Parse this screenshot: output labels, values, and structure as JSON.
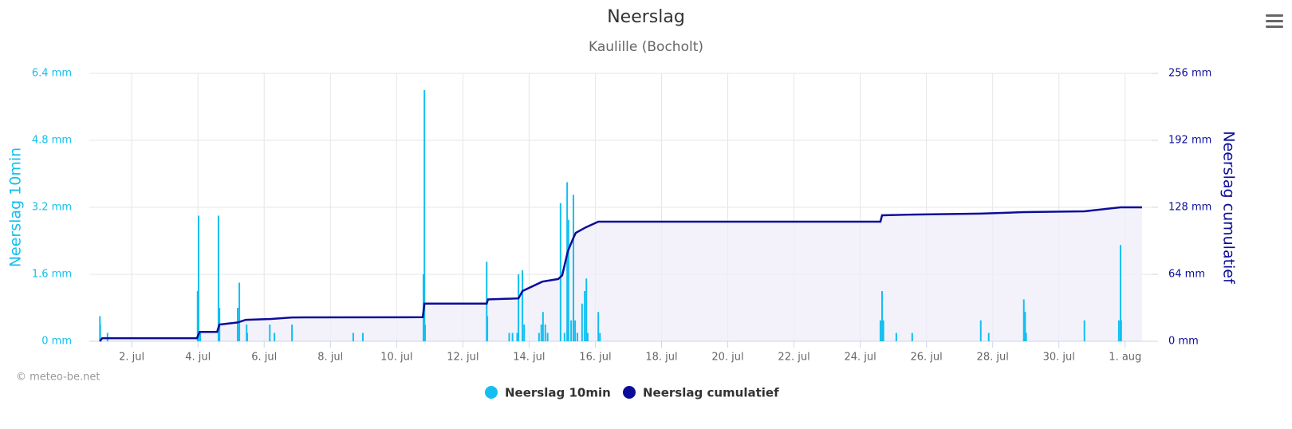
{
  "chart_data": {
    "type": "combo",
    "title": "Neerslag",
    "subtitle": "Kaulille (Bocholt)",
    "credit": "© meteo-be.net",
    "ylabel": "Neerslag 10min",
    "y2label": "Neerslag cumulatief",
    "xlim": [
      0.72,
      32.8
    ],
    "xticks": [
      {
        "value": 2,
        "label": "2. jul"
      },
      {
        "value": 4,
        "label": "4. jul"
      },
      {
        "value": 6,
        "label": "6. jul"
      },
      {
        "value": 8,
        "label": "8. jul"
      },
      {
        "value": 10,
        "label": "10. jul"
      },
      {
        "value": 12,
        "label": "12. jul"
      },
      {
        "value": 14,
        "label": "14. jul"
      },
      {
        "value": 16,
        "label": "16. jul"
      },
      {
        "value": 18,
        "label": "18. jul"
      },
      {
        "value": 20,
        "label": "20. jul"
      },
      {
        "value": 22,
        "label": "22. jul"
      },
      {
        "value": 24,
        "label": "24. jul"
      },
      {
        "value": 26,
        "label": "26. jul"
      },
      {
        "value": 28,
        "label": "28. jul"
      },
      {
        "value": 30,
        "label": "30. jul"
      },
      {
        "value": 32,
        "label": "1. aug"
      }
    ],
    "ylim": [
      0,
      6.4
    ],
    "yticks": [
      {
        "value": 0,
        "label": "0 mm"
      },
      {
        "value": 1.6,
        "label": "1.6 mm"
      },
      {
        "value": 3.2,
        "label": "3.2 mm"
      },
      {
        "value": 4.8,
        "label": "4.8 mm"
      },
      {
        "value": 6.4,
        "label": "6.4 mm"
      }
    ],
    "y2lim": [
      0,
      256
    ],
    "y2ticks": [
      {
        "value": 0,
        "label": "0 mm"
      },
      {
        "value": 64,
        "label": "64 mm"
      },
      {
        "value": 128,
        "label": "128 mm"
      },
      {
        "value": 192,
        "label": "192 mm"
      },
      {
        "value": 256,
        "label": "256 mm"
      }
    ],
    "grid": true,
    "series": [
      {
        "name": "Neerslag 10min",
        "type": "bar",
        "color": "#12bff0",
        "x": [
          1.04,
          1.05,
          1.27,
          3.99,
          4.02,
          4.07,
          4.62,
          4.65,
          5.2,
          5.25,
          5.47,
          5.49,
          6.17,
          6.31,
          6.84,
          8.69,
          8.98,
          10.81,
          10.84,
          10.86,
          12.72,
          12.74,
          13.4,
          13.5,
          13.64,
          13.68,
          13.8,
          13.85,
          14.3,
          14.37,
          14.42,
          14.49,
          14.56,
          14.95,
          15.07,
          15.15,
          15.19,
          15.27,
          15.34,
          15.39,
          15.46,
          15.6,
          15.68,
          15.73,
          15.77,
          16.09,
          16.14,
          24.61,
          24.66,
          24.7,
          25.09,
          25.57,
          27.64,
          27.88,
          28.94,
          28.98,
          29.01,
          30.77,
          31.81,
          31.86,
          31.88
        ],
        "values": [
          0.6,
          0.4,
          0.2,
          1.2,
          3.0,
          0.2,
          3.0,
          0.8,
          0.8,
          1.4,
          0.4,
          0.2,
          0.4,
          0.2,
          0.4,
          0.2,
          0.2,
          1.6,
          6.0,
          0.4,
          1.9,
          0.6,
          0.2,
          0.2,
          0.2,
          1.6,
          1.7,
          0.4,
          0.2,
          0.4,
          0.7,
          0.4,
          0.2,
          3.3,
          0.2,
          3.8,
          2.9,
          0.5,
          3.5,
          0.5,
          0.2,
          0.9,
          1.2,
          1.5,
          0.2,
          0.7,
          0.2,
          0.5,
          1.2,
          0.5,
          0.2,
          0.2,
          0.5,
          0.2,
          1.0,
          0.7,
          0.2,
          0.5,
          0.5,
          2.3,
          0.5
        ]
      },
      {
        "name": "Neerslag cumulatief",
        "type": "area",
        "axis": "y2",
        "color": "#0c0c9a",
        "fill": "#efeefa",
        "x": [
          1.04,
          1.11,
          3.97,
          4.05,
          4.58,
          4.65,
          5.2,
          5.44,
          6.21,
          6.84,
          10.79,
          10.84,
          12.72,
          12.76,
          13.68,
          13.8,
          14.4,
          14.88,
          15.0,
          15.17,
          15.32,
          15.41,
          15.72,
          16.09,
          24.61,
          24.66,
          25.48,
          27.64,
          28.94,
          30.77,
          31.86,
          32.51
        ],
        "values": [
          0,
          3,
          3,
          9,
          9,
          16,
          18,
          20.5,
          21.3,
          22.8,
          23,
          36,
          36,
          40,
          41,
          48,
          57,
          59.5,
          63,
          86,
          97.5,
          103.6,
          109,
          114.3,
          114.3,
          120.4,
          121,
          122,
          123.4,
          124.2,
          128,
          128
        ]
      }
    ]
  }
}
